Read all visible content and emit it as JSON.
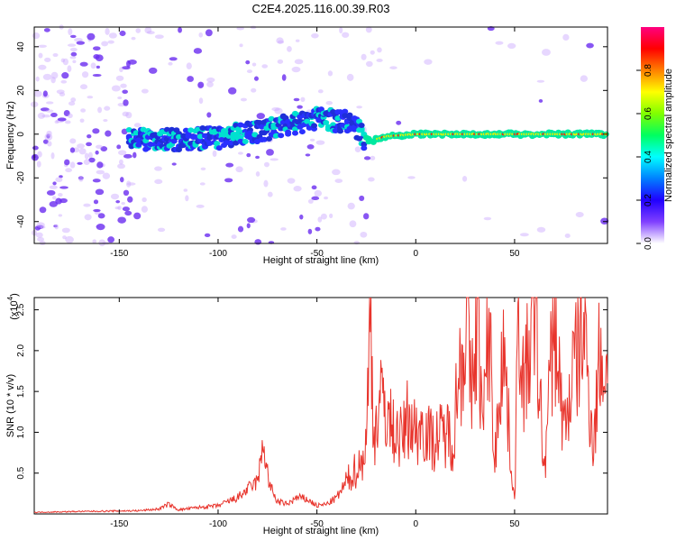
{
  "title": "C2E4.2025.116.00.39.R03",
  "chart_data": [
    {
      "type": "heatmap",
      "xlabel": "Height of straight line (km)",
      "ylabel": "Frequency (Hz)",
      "xlim": [
        -193,
        97
      ],
      "ylim": [
        -50,
        49
      ],
      "xticks": [
        -150,
        -100,
        -50,
        0,
        50
      ],
      "xtick_labels": [
        "-150",
        "-100",
        "-50",
        "0",
        "50"
      ],
      "yticks": [
        -40,
        -20,
        0,
        20,
        40
      ],
      "ytick_labels": [
        "-40",
        "-20",
        "0",
        "20",
        "40"
      ],
      "colorbar": {
        "label": "Normalized spectral amplitude",
        "range": [
          0,
          1
        ],
        "ticks": [
          0.0,
          0.2,
          0.4,
          0.6,
          0.8
        ],
        "tick_labels": [
          "0.0",
          "0.2",
          "0.4",
          "0.6",
          "0.8"
        ],
        "colors": [
          "#ffffff",
          "#8040ff",
          "#2000ff",
          "#0080ff",
          "#00ffff",
          "#00ff60",
          "#80ff00",
          "#ffff00",
          "#ff8000",
          "#ff0000",
          "#ff0080"
        ]
      },
      "ridge": {
        "x": [
          -145,
          -130,
          -115,
          -100,
          -90,
          -75,
          -60,
          -50,
          -40,
          -32,
          -26,
          -22,
          -15,
          0,
          20,
          40,
          60,
          80,
          97
        ],
        "y": [
          -2,
          -3,
          -2,
          -2,
          0,
          2,
          5,
          7,
          6,
          6,
          -2,
          -3,
          -1,
          0,
          0,
          0,
          0,
          0,
          0
        ]
      },
      "grid": false
    },
    {
      "type": "line",
      "xlabel": "Height of straight line (km)",
      "ylabel": "SNR (10 * v/v)",
      "yscale_label": "(x10",
      "yscale_exp": "4",
      "yscale_close": ")",
      "xlim": [
        -193,
        97
      ],
      "ylim": [
        0,
        2.65
      ],
      "xticks": [
        -150,
        -100,
        -50,
        0,
        50
      ],
      "xtick_labels": [
        "-150",
        "-100",
        "-50",
        "0",
        "50"
      ],
      "yticks": [
        0.5,
        1.0,
        1.5,
        2.0,
        2.5
      ],
      "ytick_labels": [
        "0.5",
        "1.0",
        "1.5",
        "2.0",
        "2.5"
      ],
      "series": [
        {
          "color": "#e8342c",
          "x": [
            -193,
            -170,
            -140,
            -130,
            -125,
            -120,
            -110,
            -100,
            -95,
            -90,
            -85,
            -80,
            -77,
            -74,
            -70,
            -65,
            -60,
            -55,
            -50,
            -45,
            -40,
            -36,
            -32,
            -28,
            -25,
            -23,
            -21,
            -19,
            -16,
            -13,
            -10,
            -7,
            -4,
            0,
            4,
            8,
            12,
            16,
            19,
            21,
            24,
            26,
            28,
            31,
            34,
            37,
            40,
            44,
            48,
            50,
            52,
            55,
            60,
            65,
            70,
            75,
            80,
            85,
            90,
            93,
            97
          ],
          "y": [
            0.02,
            0.03,
            0.04,
            0.06,
            0.12,
            0.05,
            0.08,
            0.1,
            0.15,
            0.2,
            0.3,
            0.4,
            0.85,
            0.35,
            0.15,
            0.12,
            0.2,
            0.18,
            0.1,
            0.12,
            0.2,
            0.35,
            0.5,
            0.6,
            0.85,
            2.5,
            0.9,
            1.3,
            1.4,
            1.1,
            1.0,
            0.9,
            1.2,
            1.0,
            1.1,
            0.9,
            0.95,
            1.0,
            0.9,
            1.6,
            2.0,
            2.6,
            1.3,
            2.55,
            1.0,
            2.4,
            0.6,
            2.2,
            0.7,
            0.15,
            2.6,
            1.5,
            2.6,
            0.5,
            2.4,
            1.0,
            1.8,
            2.3,
            0.8,
            2.0,
            1.6
          ]
        }
      ],
      "grid": false
    }
  ]
}
